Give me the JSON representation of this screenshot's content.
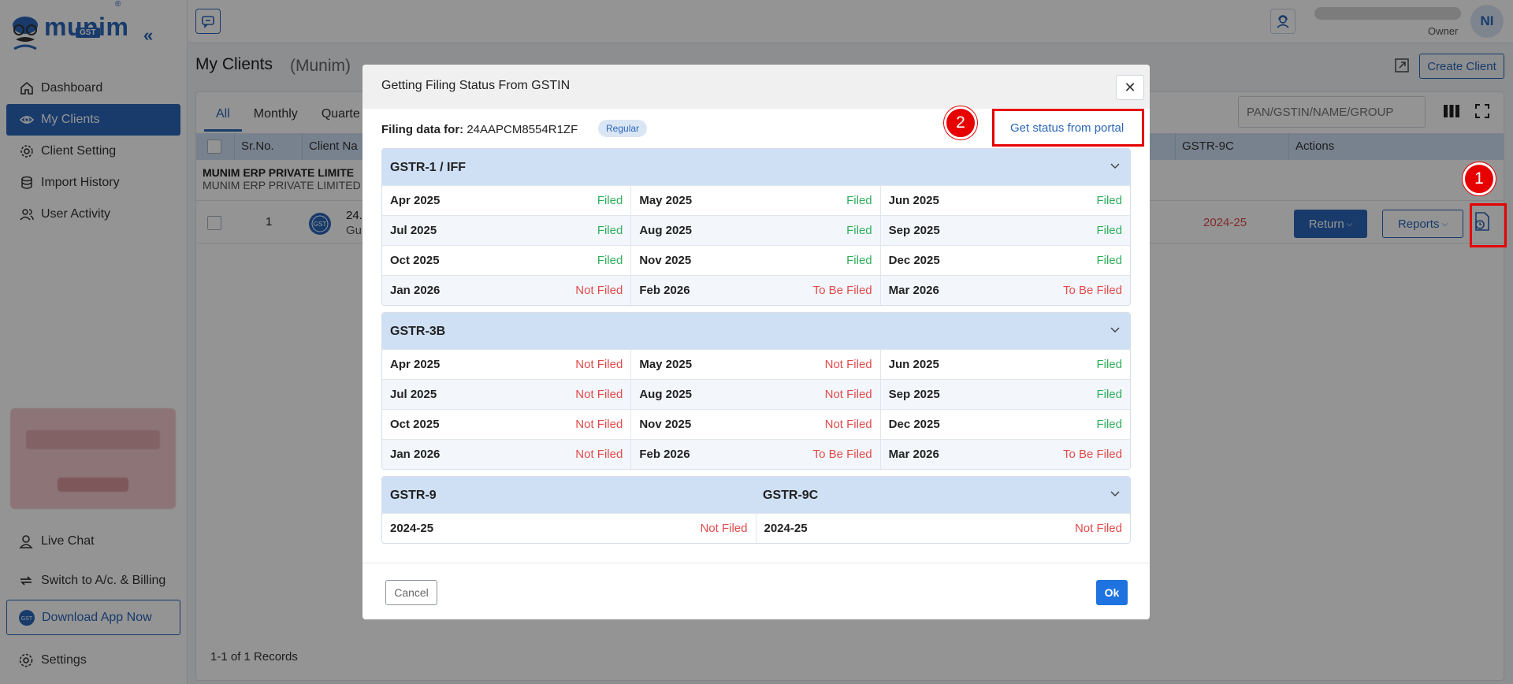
{
  "brand": {
    "name": "munim",
    "badge": "GST",
    "reg": "®"
  },
  "sidebar": {
    "items": [
      {
        "label": "Dashboard"
      },
      {
        "label": "My Clients"
      },
      {
        "label": "Client Setting"
      },
      {
        "label": "Import History"
      },
      {
        "label": "User Activity"
      }
    ],
    "live_chat": "Live Chat",
    "switch_billing": "Switch to A/c. & Billing",
    "download_app": "Download App Now",
    "settings": "Settings"
  },
  "topbar": {
    "user_role": "Owner",
    "avatar_initials": "NI"
  },
  "page": {
    "title": "My Clients",
    "subtitle": "(Munim)",
    "create_client": "Create Client",
    "tabs": [
      "All",
      "Monthly",
      "Quarte"
    ],
    "search_placeholder": "PAN/GSTIN/NAME/GROUP",
    "columns": {
      "srno": "Sr.No.",
      "client_name": "Client Na",
      "gstr9c": "GSTR-9C",
      "actions": "Actions"
    },
    "group": {
      "title": "MUNIM ERP PRIVATE LIMITE",
      "subtitle": "MUNIM ERP PRIVATE LIMITED"
    },
    "row": {
      "srno": "1",
      "name_part": "24.",
      "name_part2": "Gu",
      "gstr9c_value": "2024-25",
      "return_btn": "Return",
      "reports_btn": "Reports"
    },
    "records": "1-1 of 1 Records"
  },
  "annotations": {
    "badge1": "1",
    "badge2": "2"
  },
  "modal": {
    "title": "Getting Filing Status From GSTIN",
    "filing_label": "Filing data for:",
    "gstin": "24AAPCM8554R1ZF",
    "badge": "Regular",
    "portal_link": "Get status from portal",
    "sections": [
      {
        "title": "GSTR-1 / IFF",
        "cells": [
          {
            "month": "Apr 2025",
            "status": "Filed"
          },
          {
            "month": "May 2025",
            "status": "Filed"
          },
          {
            "month": "Jun 2025",
            "status": "Filed"
          },
          {
            "month": "Jul 2025",
            "status": "Filed"
          },
          {
            "month": "Aug 2025",
            "status": "Filed"
          },
          {
            "month": "Sep 2025",
            "status": "Filed"
          },
          {
            "month": "Oct 2025",
            "status": "Filed"
          },
          {
            "month": "Nov 2025",
            "status": "Filed"
          },
          {
            "month": "Dec 2025",
            "status": "Filed"
          },
          {
            "month": "Jan 2026",
            "status": "Not Filed"
          },
          {
            "month": "Feb 2026",
            "status": "To Be Filed"
          },
          {
            "month": "Mar 2026",
            "status": "To Be Filed"
          }
        ]
      },
      {
        "title": "GSTR-3B",
        "cells": [
          {
            "month": "Apr 2025",
            "status": "Not Filed"
          },
          {
            "month": "May 2025",
            "status": "Not Filed"
          },
          {
            "month": "Jun 2025",
            "status": "Filed"
          },
          {
            "month": "Jul 2025",
            "status": "Not Filed"
          },
          {
            "month": "Aug 2025",
            "status": "Not Filed"
          },
          {
            "month": "Sep 2025",
            "status": "Filed"
          },
          {
            "month": "Oct 2025",
            "status": "Not Filed"
          },
          {
            "month": "Nov 2025",
            "status": "Not Filed"
          },
          {
            "month": "Dec 2025",
            "status": "Filed"
          },
          {
            "month": "Jan 2026",
            "status": "Not Filed"
          },
          {
            "month": "Feb 2026",
            "status": "To Be Filed"
          },
          {
            "month": "Mar 2026",
            "status": "To Be Filed"
          }
        ]
      }
    ],
    "annual": {
      "title_left": "GSTR-9",
      "title_right": "GSTR-9C",
      "left": {
        "year": "2024-25",
        "status": "Not Filed"
      },
      "right": {
        "year": "2024-25",
        "status": "Not Filed"
      }
    },
    "cancel": "Cancel",
    "ok": "Ok"
  },
  "colors": {
    "accent": "#2a66b8",
    "filed": "#2eaf5c",
    "not_filed": "#e14b4b",
    "annotation": "#e60000"
  }
}
